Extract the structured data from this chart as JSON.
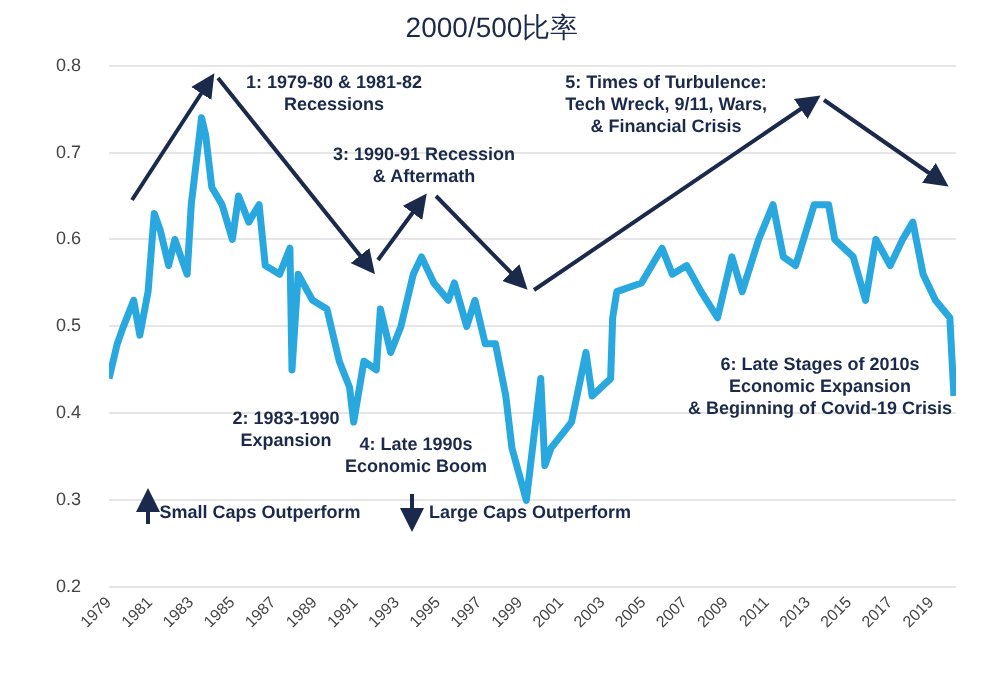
{
  "chart_data": {
    "type": "line",
    "title": "2000/500比率",
    "x": [
      1979.0,
      1979.4,
      1979.7,
      1980.2,
      1980.5,
      1980.9,
      1981.2,
      1981.5,
      1981.9,
      1982.2,
      1982.5,
      1982.8,
      1983.0,
      1983.2,
      1983.5,
      1983.7,
      1984.0,
      1984.5,
      1985.0,
      1985.3,
      1985.8,
      1986.3,
      1986.6,
      1987.3,
      1987.8,
      1987.9,
      1988.2,
      1988.9,
      1989.6,
      1990.2,
      1990.7,
      1990.9,
      1991.4,
      1992.0,
      1992.2,
      1992.7,
      1993.2,
      1993.8,
      1994.2,
      1994.8,
      1995.5,
      1995.8,
      1996.4,
      1996.8,
      1997.3,
      1997.8,
      1998.3,
      1998.6,
      1999.3,
      2000.0,
      2000.2,
      2000.5,
      2001.5,
      2002.2,
      2002.5,
      2003.4,
      2003.5,
      2003.7,
      2004.9,
      2005.9,
      2006.4,
      2007.1,
      2007.8,
      2008.6,
      2009.3,
      2009.8,
      2010.6,
      2011.3,
      2011.8,
      2012.4,
      2013.3,
      2014.0,
      2014.3,
      2015.2,
      2015.8,
      2016.3,
      2017.0,
      2017.6,
      2018.1,
      2018.6,
      2019.2,
      2019.9,
      2020.1
    ],
    "values": [
      0.44,
      0.48,
      0.5,
      0.53,
      0.49,
      0.54,
      0.63,
      0.61,
      0.57,
      0.6,
      0.58,
      0.56,
      0.64,
      0.68,
      0.74,
      0.72,
      0.66,
      0.64,
      0.6,
      0.65,
      0.62,
      0.64,
      0.57,
      0.56,
      0.59,
      0.45,
      0.56,
      0.53,
      0.52,
      0.46,
      0.43,
      0.39,
      0.46,
      0.45,
      0.52,
      0.47,
      0.5,
      0.56,
      0.58,
      0.55,
      0.53,
      0.55,
      0.5,
      0.53,
      0.48,
      0.48,
      0.42,
      0.36,
      0.3,
      0.44,
      0.34,
      0.36,
      0.39,
      0.47,
      0.42,
      0.44,
      0.51,
      0.54,
      0.55,
      0.59,
      0.56,
      0.57,
      0.54,
      0.51,
      0.58,
      0.54,
      0.6,
      0.64,
      0.58,
      0.57,
      0.64,
      0.64,
      0.6,
      0.58,
      0.53,
      0.6,
      0.57,
      0.6,
      0.62,
      0.56,
      0.53,
      0.51,
      0.42
    ],
    "color": "#29a8e0",
    "xlim": [
      1979,
      2020.2
    ],
    "xticks": [
      1979,
      1981,
      1983,
      1985,
      1987,
      1989,
      1991,
      1993,
      1995,
      1997,
      1999,
      2001,
      2003,
      2005,
      2007,
      2009,
      2011,
      2013,
      2015,
      2017,
      2019
    ],
    "ylim": [
      0.2,
      0.8
    ],
    "yticks": [
      0.2,
      0.3,
      0.4,
      0.5,
      0.6,
      0.7,
      0.8
    ],
    "grid": "y",
    "annotations": [
      "1: 1979-80 & 1981-82\nRecessions",
      "3: 1990-91 Recession\n& Aftermath",
      "5: Times of Turbulence:\nTech Wreck, 9/11, Wars,\n& Financial Crisis",
      "2: 1983-1990\nExpansion",
      "4: Late 1990s\nEconomic Boom",
      "6: Late Stages of 2010s\nEconomic Expansion\n& Beginning of Covid-19 Crisis",
      "Small Caps Outperform",
      "Large Caps Outperform"
    ]
  }
}
